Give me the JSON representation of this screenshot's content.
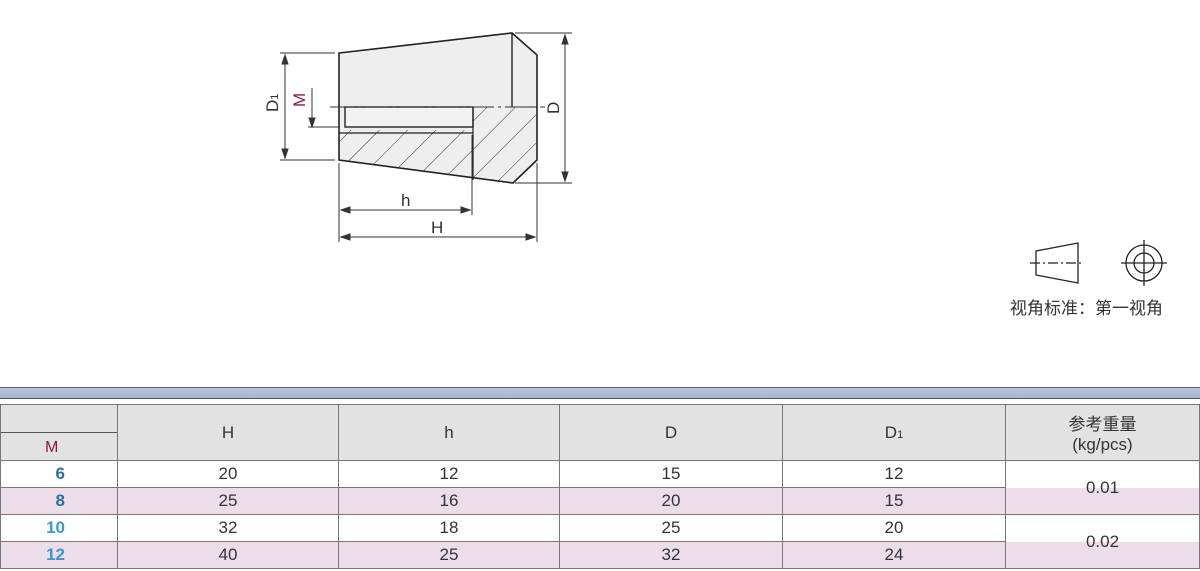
{
  "drawing": {
    "labels": {
      "D1": "D",
      "D1_sub": "1",
      "M": "M",
      "D": "D",
      "h": "h",
      "H": "H"
    },
    "label_color_M": "#8b1a3c"
  },
  "projection": {
    "label": "视角标准：第一视角"
  },
  "table": {
    "headers": {
      "M": "M",
      "H": "H",
      "h": "h",
      "D": "D",
      "D1": "D",
      "D1_sub": "1",
      "weight": "参考重量",
      "weight_unit": "(kg/pcs)"
    },
    "rows": [
      {
        "M": "6",
        "H": "20",
        "h": "12",
        "D": "15",
        "D1": "12",
        "M_color": "#2a6fa8"
      },
      {
        "M": "8",
        "H": "25",
        "h": "16",
        "D": "20",
        "D1": "15",
        "M_color": "#2a6fa8"
      },
      {
        "M": "10",
        "H": "32",
        "h": "18",
        "D": "25",
        "D1": "20",
        "M_color": "#3c97d6"
      },
      {
        "M": "12",
        "H": "40",
        "h": "25",
        "D": "32",
        "D1": "24",
        "M_color": "#3c97d6"
      }
    ],
    "weights": [
      "0.01",
      "0.02"
    ],
    "row_colors": [
      "#ffffff",
      "#ecdde8"
    ]
  }
}
